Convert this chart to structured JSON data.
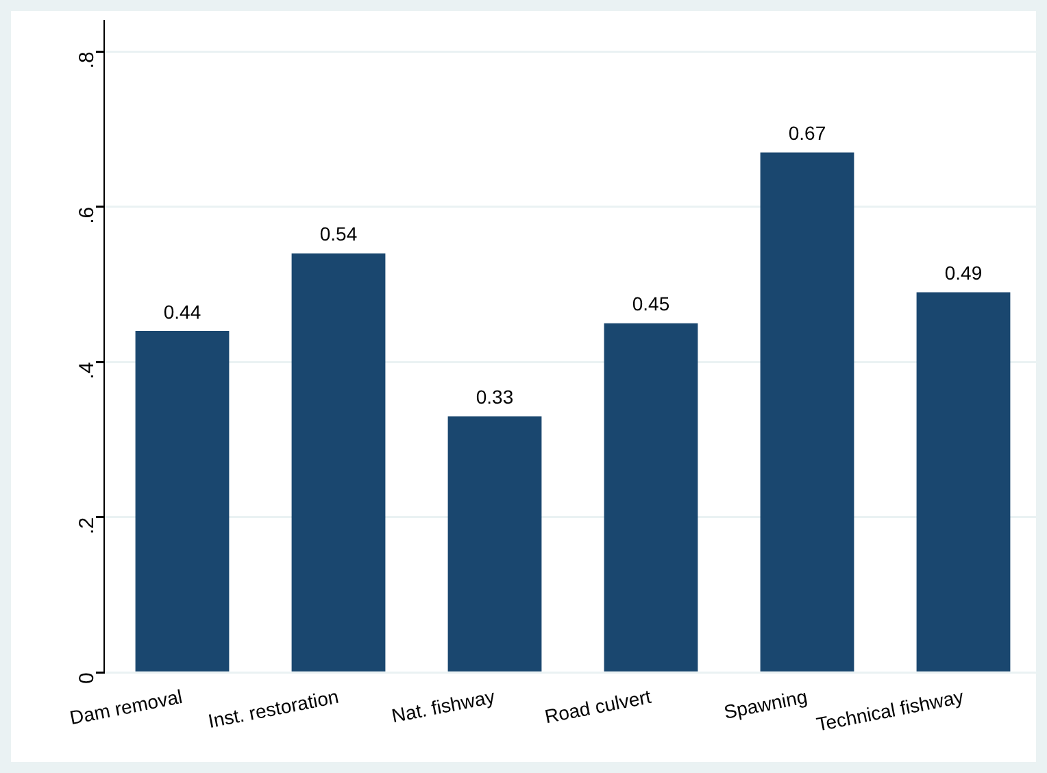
{
  "chart_data": {
    "type": "bar",
    "categories": [
      "Dam removal",
      "Inst. restoration",
      "Nat. fishway",
      "Road culvert",
      "Spawning",
      "Technical fishway"
    ],
    "values": [
      0.44,
      0.54,
      0.33,
      0.45,
      0.67,
      0.49
    ],
    "color": "#1a476f",
    "ylim": [
      0,
      0.84
    ],
    "yticks": [
      0,
      {
        "value": 0.2,
        "label": ".2"
      },
      {
        "value": 0.4,
        "label": ".4"
      },
      {
        "value": 0.6,
        "label": ".6"
      },
      {
        "value": 0.8,
        "label": ".8"
      }
    ],
    "grid": "y",
    "legend": false,
    "data_labels": true
  }
}
